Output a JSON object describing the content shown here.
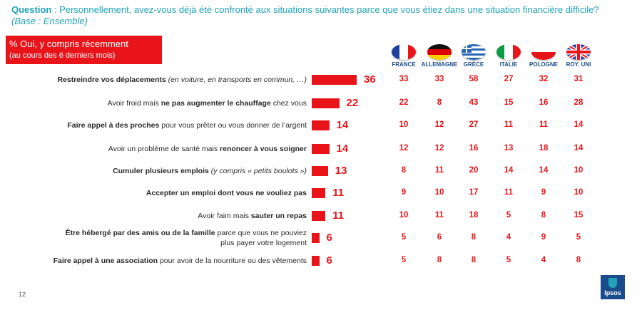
{
  "question": {
    "label": "Question",
    "text": " : Personnellement, avez-vous déjà été confronté aux situations suivantes parce que vous étiez dans une situation financière difficile?",
    "base": "(Base : Ensemble)"
  },
  "legend_box": {
    "line1": "% Oui, y compris récemment",
    "line2": "(au cours des 6 derniers mois)"
  },
  "page_number": "12",
  "brand": "Ipsos",
  "colors": {
    "accent": "#e8141a",
    "title": "#1fa3b8",
    "country_text": "#1a4c8b"
  },
  "countries": [
    {
      "name": "FRANCE",
      "flag": "france-flag-icon"
    },
    {
      "name": "ALLEMAGNE",
      "flag": "germany-flag-icon"
    },
    {
      "name": "GRÈCE",
      "flag": "greece-flag-icon"
    },
    {
      "name": "ITALIE",
      "flag": "italy-flag-icon"
    },
    {
      "name": "POLOGNE",
      "flag": "poland-flag-icon"
    },
    {
      "name": "ROY. UNI",
      "flag": "uk-flag-icon"
    }
  ],
  "rows": [
    {
      "label": [
        {
          "t": "Restreindre vos déplacements",
          "s": "b"
        },
        {
          "t": " (en voiture, en transports en commun, …)",
          "s": "i"
        }
      ],
      "value": 36,
      "countries": [
        33,
        33,
        58,
        27,
        32,
        31
      ]
    },
    {
      "label": [
        {
          "t": "Avoir froid mais ",
          "s": ""
        },
        {
          "t": "ne pas augmenter le chauffage",
          "s": "b"
        },
        {
          "t": " chez vous",
          "s": ""
        }
      ],
      "value": 22,
      "countries": [
        22,
        8,
        43,
        15,
        16,
        28
      ]
    },
    {
      "label": [
        {
          "t": "Faire appel à des proches",
          "s": "b"
        },
        {
          "t": " pour vous prêter ou vous donner de l’argent",
          "s": ""
        }
      ],
      "value": 14,
      "countries": [
        10,
        12,
        27,
        11,
        11,
        14
      ]
    },
    {
      "label": [
        {
          "t": "Avoir un problème de santé mais ",
          "s": ""
        },
        {
          "t": "renoncer à vous soigner",
          "s": "b"
        }
      ],
      "value": 14,
      "countries": [
        12,
        12,
        16,
        13,
        18,
        14
      ]
    },
    {
      "label": [
        {
          "t": "Cumuler plusieurs emplois",
          "s": "b"
        },
        {
          "t": " (y compris « petits boulots »)",
          "s": "i"
        }
      ],
      "value": 13,
      "countries": [
        8,
        11,
        20,
        14,
        14,
        10
      ]
    },
    {
      "label": [
        {
          "t": "Accepter un emploi dont vous ne vouliez pas",
          "s": "b"
        }
      ],
      "value": 11,
      "countries": [
        9,
        10,
        17,
        11,
        9,
        10
      ]
    },
    {
      "label": [
        {
          "t": "Avoir faim mais ",
          "s": ""
        },
        {
          "t": "sauter un repas",
          "s": "b"
        }
      ],
      "value": 11,
      "countries": [
        10,
        11,
        18,
        5,
        8,
        15
      ]
    },
    {
      "label": [
        {
          "t": "Être hébergé par des amis ou de la famille",
          "s": "b"
        },
        {
          "t": " parce que vous ne pouviez plus payer votre logement",
          "s": ""
        }
      ],
      "value": 6,
      "countries": [
        5,
        6,
        8,
        4,
        9,
        5
      ]
    },
    {
      "label": [
        {
          "t": "Faire appel à une association",
          "s": "b"
        },
        {
          "t": " pour avoir de la nourriture ou des vêtements",
          "s": ""
        }
      ],
      "value": 6,
      "countries": [
        5,
        8,
        8,
        5,
        4,
        8
      ]
    }
  ],
  "chart_data": {
    "type": "bar",
    "categories": [
      "Restreindre vos déplacements (en voiture, en transports en commun, …)",
      "Avoir froid mais ne pas augmenter le chauffage chez vous",
      "Faire appel à des proches pour vous prêter ou vous donner de l’argent",
      "Avoir un problème de santé mais renoncer à vous soigner",
      "Cumuler plusieurs emplois (y compris « petits boulots »)",
      "Accepter un emploi dont vous ne vouliez pas",
      "Avoir faim mais sauter un repas",
      "Être hébergé par des amis ou de la famille parce que vous ne pouviez plus payer votre logement",
      "Faire appel à une association pour avoir de la nourriture ou des vêtements"
    ],
    "values": [
      36,
      22,
      14,
      14,
      13,
      11,
      11,
      6,
      6
    ],
    "title": "",
    "xlabel": "",
    "ylabel": "",
    "orientation": "horizontal",
    "grid": false,
    "table": {
      "columns": [
        "FRANCE",
        "ALLEMAGNE",
        "GRÈCE",
        "ITALIE",
        "POLOGNE",
        "ROY. UNI"
      ],
      "rows": [
        [
          33,
          33,
          58,
          27,
          32,
          31
        ],
        [
          22,
          8,
          43,
          15,
          16,
          28
        ],
        [
          10,
          12,
          27,
          11,
          11,
          14
        ],
        [
          12,
          12,
          16,
          13,
          18,
          14
        ],
        [
          8,
          11,
          20,
          14,
          14,
          10
        ],
        [
          9,
          10,
          17,
          11,
          9,
          10
        ],
        [
          10,
          11,
          18,
          5,
          8,
          15
        ],
        [
          5,
          6,
          8,
          4,
          9,
          5
        ],
        [
          5,
          8,
          8,
          5,
          4,
          8
        ]
      ]
    }
  }
}
